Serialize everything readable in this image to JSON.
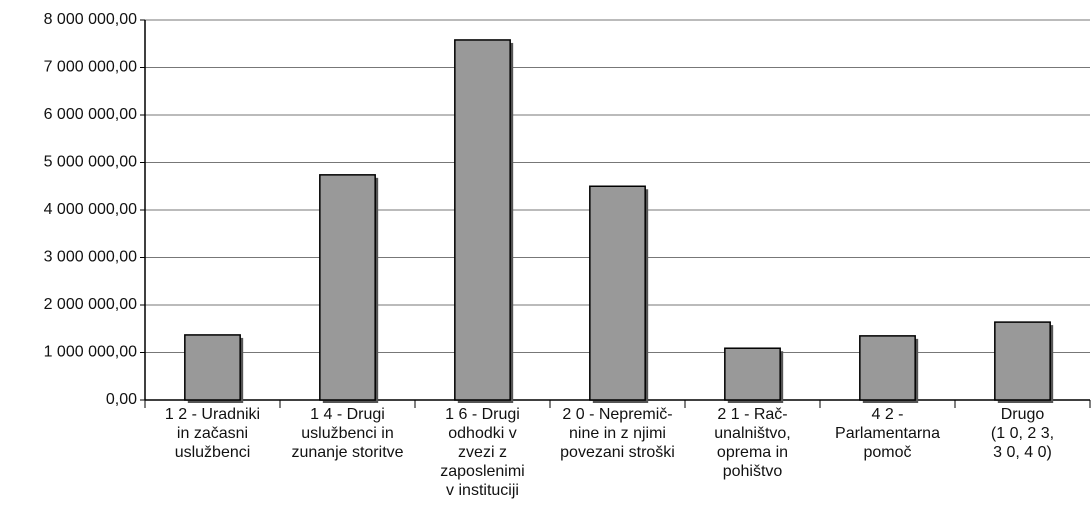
{
  "chart_data": {
    "type": "bar",
    "categories": [
      [
        "1 2 - Uradniki",
        "in začasni",
        "uslužbenci"
      ],
      [
        "1 4 - Drugi",
        "uslužbenci in",
        "zunanje storitve"
      ],
      [
        "1 6 - Drugi",
        "odhodki v",
        "zvezi z",
        "zaposlenimi",
        "v instituciji"
      ],
      [
        "2 0 - Nepremič-",
        "nine in z njimi",
        "povezani stroški"
      ],
      [
        "2 1 - Rač-",
        "unalništvo,",
        "oprema in",
        "pohištvo"
      ],
      [
        "4 2 -",
        "Parlamentarna",
        "pomoč"
      ],
      [
        "Drugo",
        "(1 0, 2 3,",
        "3 0, 4 0)"
      ]
    ],
    "values": [
      1370000,
      4740000,
      7580000,
      4500000,
      1090000,
      1350000,
      1640000
    ],
    "color": "#999999",
    "ylim": [
      0,
      8000000
    ],
    "yticks": [
      {
        "value": 0,
        "label": "0,00"
      },
      {
        "value": 1000000,
        "label": "1 000 000,00"
      },
      {
        "value": 2000000,
        "label": "2 000 000,00"
      },
      {
        "value": 3000000,
        "label": "3 000 000,00"
      },
      {
        "value": 4000000,
        "label": "4 000 000,00"
      },
      {
        "value": 5000000,
        "label": "5 000 000,00"
      },
      {
        "value": 6000000,
        "label": "6 000 000,00"
      },
      {
        "value": 7000000,
        "label": "7 000 000,00"
      },
      {
        "value": 8000000,
        "label": "8 000 000,00"
      }
    ],
    "grid": true
  }
}
